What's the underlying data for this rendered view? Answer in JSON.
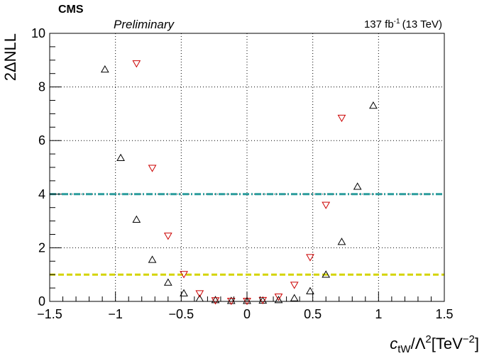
{
  "header": {
    "experiment": "CMS",
    "status": "Preliminary",
    "lumi_value": "137 fb",
    "lumi_exp": "-1",
    "lumi_energy": "(13 TeV)"
  },
  "chart_data": {
    "type": "scatter",
    "xlim": [
      -1.5,
      1.5
    ],
    "ylim": [
      0,
      10
    ],
    "xticks": [
      -1.5,
      -1,
      -0.5,
      0,
      0.5,
      1,
      1.5
    ],
    "xtick_labels": [
      "−1.5",
      "−1",
      "−0.5",
      "0",
      "0.5",
      "1",
      "1.5"
    ],
    "yticks": [
      0,
      2,
      4,
      6,
      8,
      10
    ],
    "ytick_labels": [
      "0",
      "2",
      "4",
      "6",
      "8",
      "10"
    ],
    "ylabel": "2ΔNLL",
    "xlabel": {
      "c": "c",
      "sub": "tW",
      "mid": "/Λ",
      "sup": "2",
      "unit": "[TeV",
      "unit_sup": "−2",
      "close": "]"
    },
    "grid": true,
    "series": [
      {
        "marker": "triangle-up",
        "color": "#000000",
        "points": [
          [
            -1.08,
            8.65
          ],
          [
            -0.96,
            5.35
          ],
          [
            -0.84,
            3.05
          ],
          [
            -0.72,
            1.55
          ],
          [
            -0.6,
            0.7
          ],
          [
            -0.48,
            0.3
          ],
          [
            -0.36,
            0.1
          ],
          [
            -0.24,
            0.05
          ],
          [
            -0.12,
            0.02
          ],
          [
            0.0,
            0.02
          ],
          [
            0.12,
            0.03
          ],
          [
            0.24,
            0.05
          ],
          [
            0.36,
            0.12
          ],
          [
            0.48,
            0.38
          ],
          [
            0.6,
            1.0
          ],
          [
            0.72,
            2.22
          ],
          [
            0.84,
            4.28
          ],
          [
            0.96,
            7.3
          ]
        ]
      },
      {
        "marker": "triangle-down",
        "color": "#cc0000",
        "points": [
          [
            -0.84,
            8.88
          ],
          [
            -0.72,
            4.98
          ],
          [
            -0.6,
            2.45
          ],
          [
            -0.48,
            1.02
          ],
          [
            -0.36,
            0.3
          ],
          [
            -0.24,
            0.04
          ],
          [
            -0.12,
            0.02
          ],
          [
            0.0,
            0.02
          ],
          [
            0.12,
            0.05
          ],
          [
            0.24,
            0.18
          ],
          [
            0.36,
            0.62
          ],
          [
            0.48,
            1.65
          ],
          [
            0.6,
            3.6
          ],
          [
            0.72,
            6.85
          ]
        ]
      }
    ],
    "reference_lines": [
      {
        "y": 4,
        "color": "#2a9c9c",
        "style": "dash-dot"
      },
      {
        "y": 1,
        "color": "#d4d400",
        "style": "dashed"
      }
    ]
  }
}
